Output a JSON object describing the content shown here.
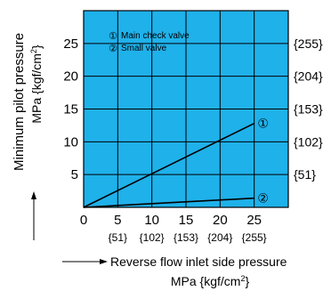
{
  "chart_data": {
    "type": "line",
    "colors": {
      "plot_background": "#1fb1ea",
      "grid": "#000000",
      "line": "#000000",
      "text": "#000000"
    },
    "grid": true,
    "xlim": [
      0,
      30
    ],
    "ylim": [
      0,
      30
    ],
    "x_ticks": [
      0,
      5,
      10,
      15,
      20,
      25
    ],
    "x_tick_labels": [
      "0",
      "5",
      "10",
      "15",
      "20",
      "25"
    ],
    "x_secondary_tick_labels": [
      "{51}",
      "{102}",
      "{153}",
      "{204}",
      "{255}"
    ],
    "y_ticks": [
      5,
      10,
      15,
      20,
      25
    ],
    "y_tick_labels": [
      "5",
      "10",
      "15",
      "20",
      "25"
    ],
    "y_secondary_tick_labels": [
      "{51}",
      "{102}",
      "{153}",
      "{204}",
      "{255}"
    ],
    "ylabel": {
      "line1": "Minimum pilot pressure",
      "line2_prefix": "MPa {kgf/cm",
      "line2_sup": "2",
      "line2_suffix": "}"
    },
    "xlabel": {
      "line1": "Reverse flow inlet side pressure",
      "line2_prefix": "MPa {kgf/cm",
      "line2_sup": "2",
      "line2_suffix": "}"
    },
    "legend": {
      "placement": "top-left",
      "entries": [
        {
          "marker": "①",
          "label": "Main check valve"
        },
        {
          "marker": "②",
          "label": "Small valve"
        }
      ]
    },
    "series": [
      {
        "marker": "①",
        "x": [
          0,
          25
        ],
        "y": [
          0,
          12.8
        ]
      },
      {
        "marker": "②",
        "x": [
          0,
          25
        ],
        "y": [
          0,
          1.4
        ]
      }
    ]
  }
}
